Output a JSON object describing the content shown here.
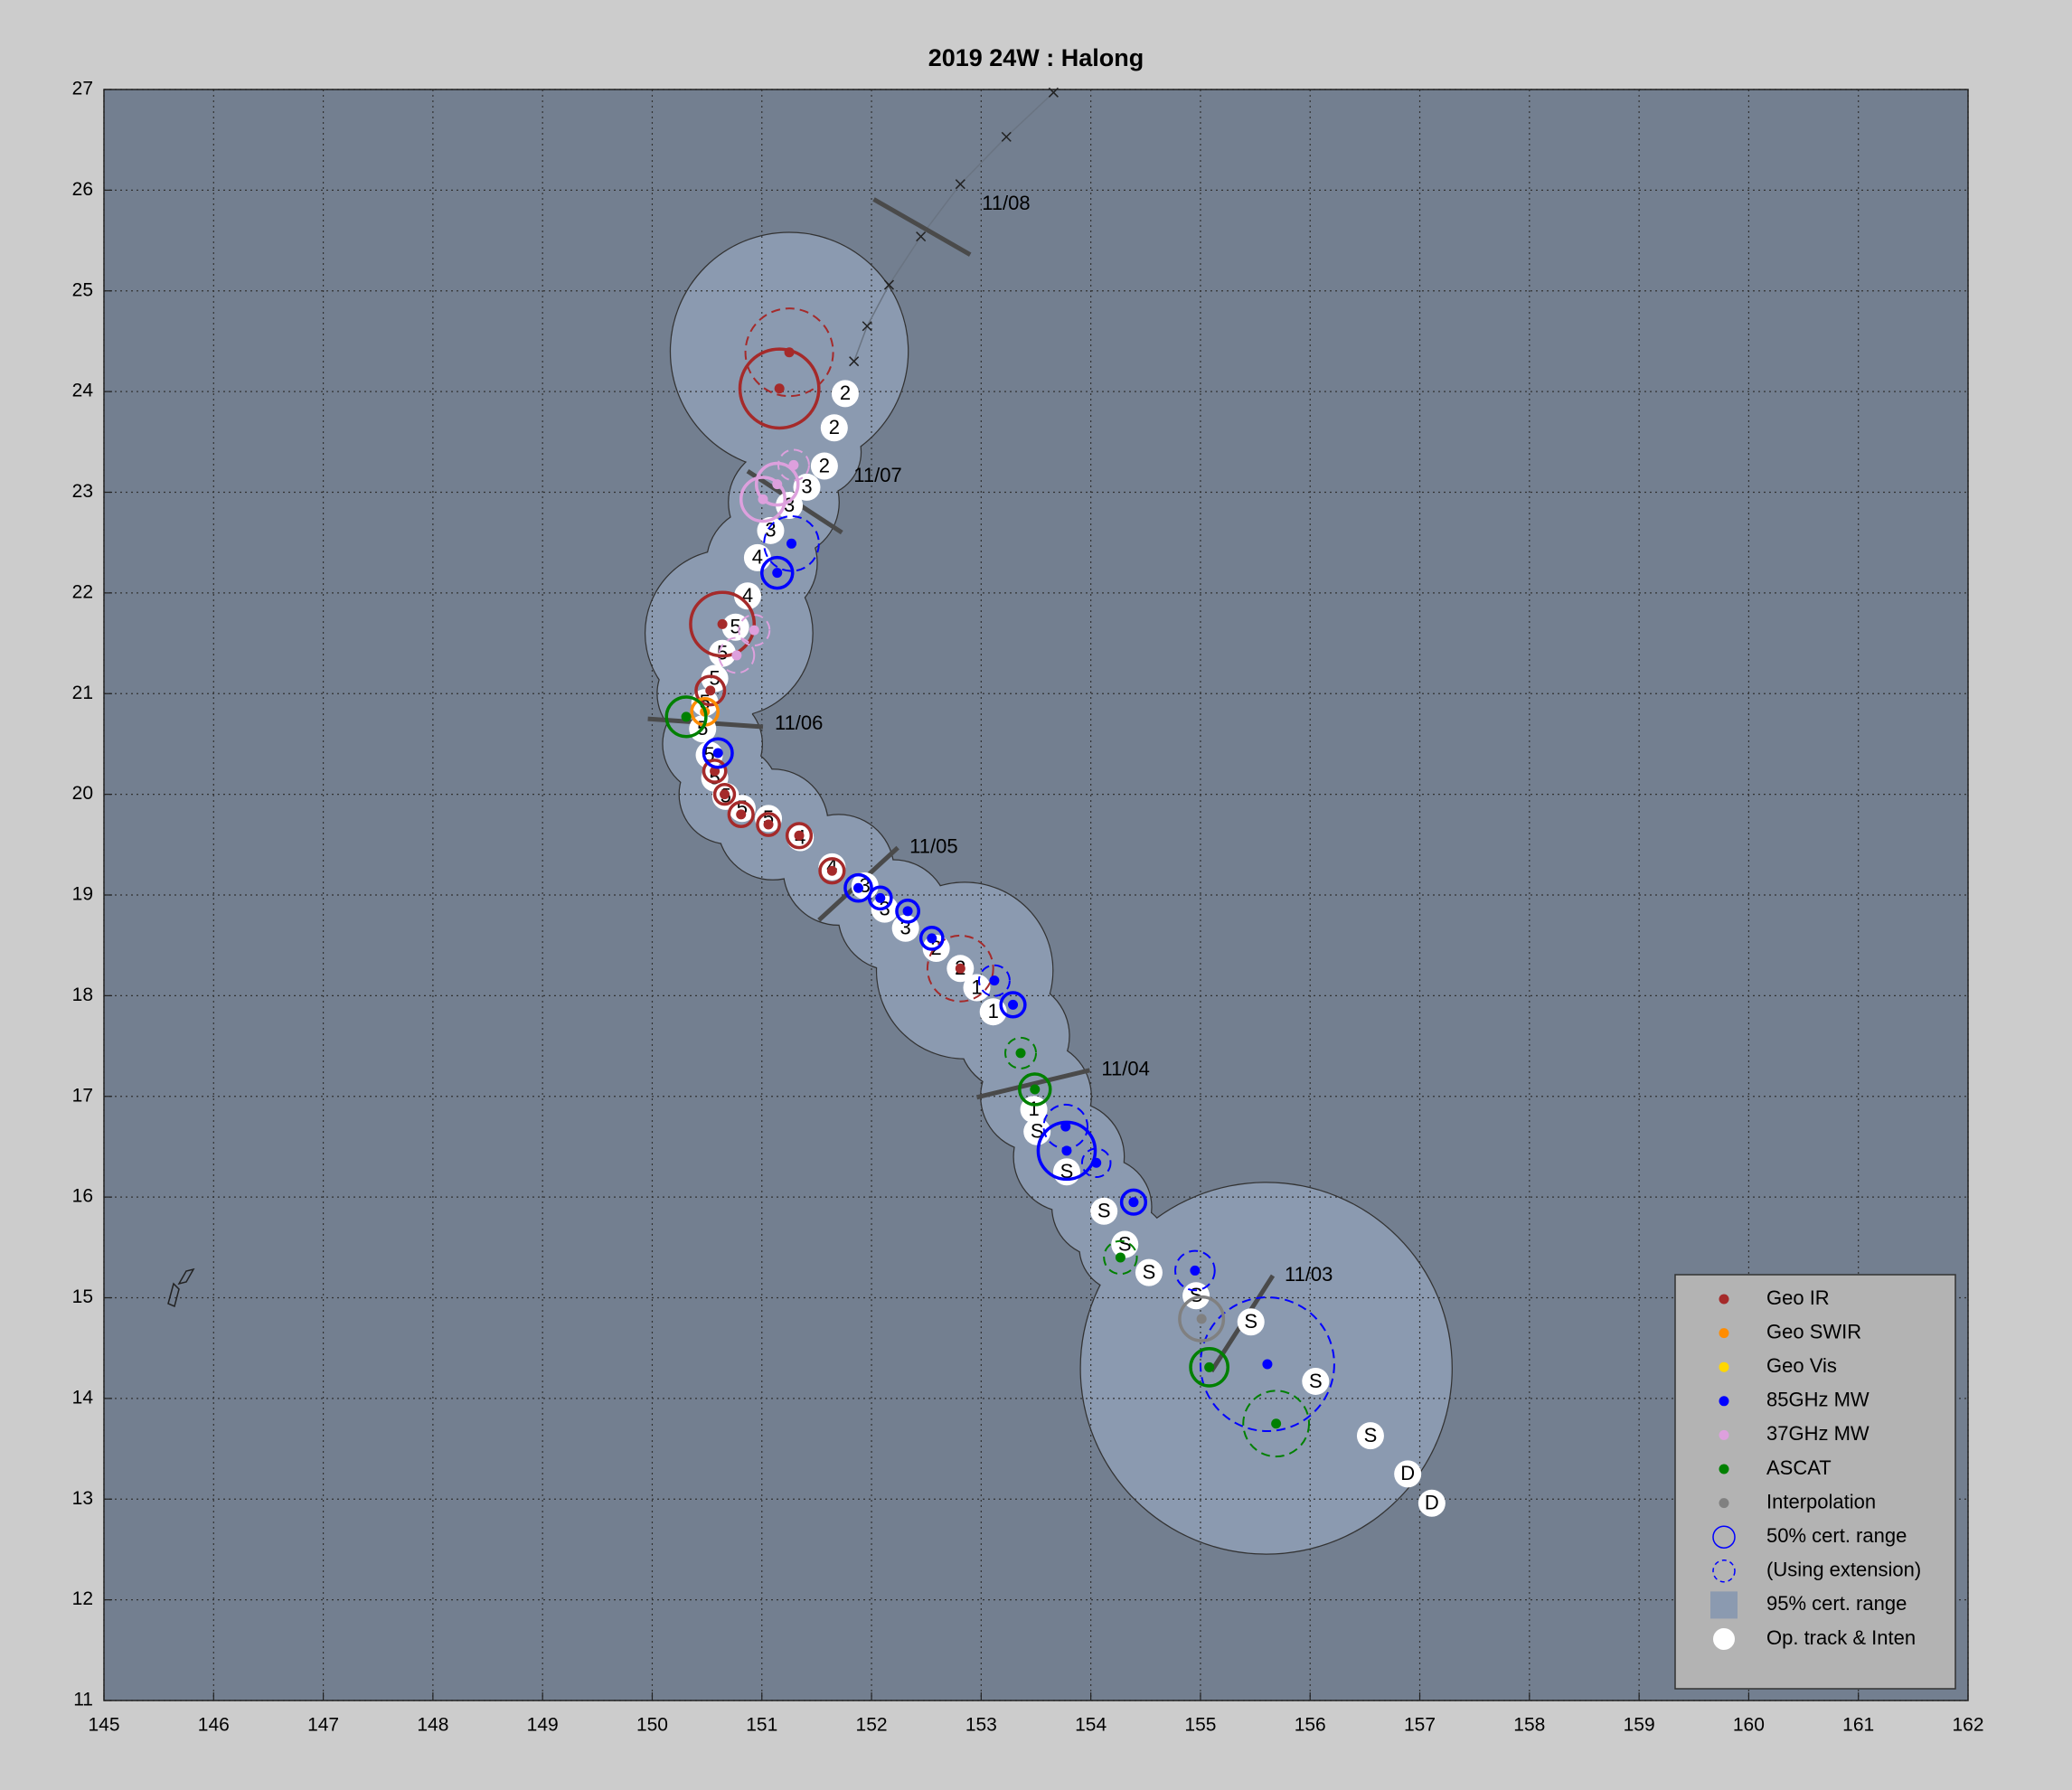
{
  "chart_data": {
    "type": "scatter",
    "title": "2019  24W :  Halong",
    "xlim": [
      145,
      162
    ],
    "ylim": [
      11,
      27
    ],
    "xticks": [
      145,
      146,
      147,
      148,
      149,
      150,
      151,
      152,
      153,
      154,
      155,
      156,
      157,
      158,
      159,
      160,
      161,
      162
    ],
    "yticks": [
      11,
      12,
      13,
      14,
      15,
      16,
      17,
      18,
      19,
      20,
      21,
      22,
      23,
      24,
      25,
      26,
      27
    ],
    "grid": true,
    "legend_position": "lower right",
    "series": [
      {
        "name": "Geo IR",
        "color": "#a52a2a",
        "x": [
          151.25,
          151.16,
          150.64,
          150.53,
          150.57,
          150.66,
          150.81,
          151.06,
          151.34,
          151.64,
          152.81
        ],
        "values": [
          24.39,
          24.03,
          21.69,
          21.03,
          20.23,
          20.0,
          19.8,
          19.7,
          19.59,
          19.24,
          18.27
        ],
        "radius": [
          0.4,
          0.36,
          0.29,
          0.13,
          0.1,
          0.09,
          0.11,
          0.1,
          0.11,
          0.11,
          0.3
        ],
        "extended": [
          true,
          false,
          false,
          false,
          false,
          false,
          false,
          false,
          false,
          false,
          true
        ]
      },
      {
        "name": "Geo SWIR",
        "color": "#ff8c00",
        "x": [
          150.48
        ],
        "values": [
          20.82
        ],
        "radius": [
          0.12
        ],
        "extended": [
          false
        ]
      },
      {
        "name": "Geo Vis",
        "color": "#ffd700",
        "x": [],
        "values": [],
        "radius": [],
        "extended": []
      },
      {
        "name": "85GHz MW",
        "color": "#0000ff",
        "x": [
          151.27,
          151.14,
          150.6,
          151.88,
          152.08,
          152.33,
          152.55,
          153.12,
          153.29,
          153.77,
          153.78,
          154.05,
          154.39,
          154.95,
          155.61
        ],
        "values": [
          22.49,
          22.2,
          20.41,
          19.07,
          18.97,
          18.84,
          18.57,
          18.15,
          17.91,
          16.7,
          16.46,
          16.34,
          15.95,
          15.27,
          14.34
        ],
        "radius": [
          0.25,
          0.14,
          0.13,
          0.12,
          0.1,
          0.1,
          0.1,
          0.14,
          0.11,
          0.2,
          0.26,
          0.13,
          0.11,
          0.18,
          0.61
        ],
        "extended": [
          true,
          false,
          false,
          false,
          false,
          false,
          false,
          true,
          false,
          true,
          false,
          true,
          false,
          true,
          true
        ]
      },
      {
        "name": "37GHz MW",
        "color": "#dda0dd",
        "x": [
          151.29,
          151.14,
          151.01,
          150.93,
          150.77
        ],
        "values": [
          23.27,
          23.08,
          22.93,
          21.63,
          21.38
        ],
        "radius": [
          0.14,
          0.19,
          0.2,
          0.14,
          0.16
        ],
        "extended": [
          true,
          false,
          false,
          true,
          true
        ]
      },
      {
        "name": "ASCAT",
        "color": "#008000",
        "x": [
          150.31,
          153.36,
          153.49,
          154.27,
          155.08,
          155.69
        ],
        "values": [
          20.77,
          17.43,
          17.07,
          15.4,
          14.31,
          13.75
        ],
        "radius": [
          0.18,
          0.14,
          0.14,
          0.15,
          0.17,
          0.3
        ],
        "extended": [
          false,
          true,
          false,
          true,
          false,
          true
        ]
      },
      {
        "name": "Interpolation",
        "color": "#808080",
        "x": [
          155.01
        ],
        "values": [
          14.79
        ],
        "radius": [
          0.2
        ],
        "extended": [
          false
        ]
      }
    ],
    "cert50_label": "50% cert. range",
    "extension_label": "(Using extension)",
    "cert95": {
      "name": "95% cert. range",
      "color": "#8b9ab0",
      "x": [
        155.6,
        154.3,
        154.1,
        153.8,
        153.5,
        153.3,
        152.85,
        152.2,
        151.7,
        151.1,
        150.7,
        150.55,
        150.5,
        150.7,
        151.0,
        151.2,
        151.5,
        151.25
      ],
      "y": [
        14.3,
        15.5,
        15.9,
        16.4,
        17.0,
        17.6,
        18.25,
        18.8,
        19.25,
        19.7,
        20.0,
        20.5,
        21.0,
        21.6,
        22.3,
        22.9,
        23.4,
        24.4
      ],
      "r": [
        1.69,
        0.4,
        0.45,
        0.5,
        0.5,
        0.5,
        0.8,
        0.5,
        0.5,
        0.5,
        0.45,
        0.45,
        0.45,
        0.76,
        0.5,
        0.5,
        0.4,
        1.08
      ]
    },
    "track": {
      "name": "Op. track & Inten",
      "color": "#ffffff",
      "x": [
        157.11,
        156.89,
        156.55,
        156.05,
        155.46,
        154.96,
        154.53,
        154.31,
        154.12,
        153.78,
        153.51,
        153.48,
        153.11,
        152.96,
        152.81,
        152.59,
        152.31,
        152.12,
        151.94,
        151.64,
        151.35,
        151.06,
        150.82,
        150.67,
        150.57,
        150.52,
        150.46,
        150.48,
        150.57,
        150.64,
        150.76,
        150.87,
        150.96,
        151.08,
        151.25,
        151.41,
        151.57,
        151.66,
        151.76
      ],
      "values": [
        12.96,
        13.25,
        13.63,
        14.17,
        14.76,
        15.02,
        15.25,
        15.53,
        15.86,
        16.25,
        16.65,
        16.87,
        17.84,
        18.08,
        18.27,
        18.47,
        18.67,
        18.86,
        19.09,
        19.28,
        19.57,
        19.76,
        19.86,
        19.98,
        20.16,
        20.39,
        20.65,
        20.91,
        21.15,
        21.4,
        21.66,
        21.97,
        22.35,
        22.62,
        22.87,
        23.05,
        23.26,
        23.64,
        23.98
      ],
      "labels": [
        "D",
        "D",
        "S",
        "S",
        "S",
        "S",
        "S",
        "S",
        "S",
        "S",
        "S",
        "1",
        "1",
        "1",
        "2",
        "2",
        "3",
        "3",
        "3",
        "4",
        "4",
        "5",
        "5",
        "5",
        "5",
        "5",
        "5",
        "5",
        "5",
        "5",
        "5",
        "4",
        "4",
        "3",
        "3",
        "3",
        "2",
        "2",
        "2"
      ]
    },
    "future_track": {
      "x": [
        151.84,
        151.96,
        152.16,
        152.45,
        152.81,
        153.23,
        153.66
      ],
      "y": [
        24.3,
        24.65,
        25.06,
        25.54,
        26.06,
        26.53,
        26.97
      ]
    },
    "dates": [
      {
        "label": "11/08",
        "x": [
          152.02,
          152.9
        ],
        "y": [
          25.91,
          25.36
        ]
      },
      {
        "label": "11/07",
        "x": [
          150.87,
          151.73
        ],
        "y": [
          23.21,
          22.6
        ]
      },
      {
        "label": "11/06",
        "x": [
          149.96,
          151.01
        ],
        "y": [
          20.75,
          20.67
        ]
      },
      {
        "label": "11/05",
        "x": [
          151.52,
          152.24
        ],
        "y": [
          18.75,
          19.47
        ]
      },
      {
        "label": "11/04",
        "x": [
          152.96,
          153.99
        ],
        "y": [
          16.99,
          17.26
        ]
      },
      {
        "label": "11/03",
        "x": [
          155.1,
          155.66
        ],
        "y": [
          14.27,
          15.22
        ]
      }
    ]
  }
}
